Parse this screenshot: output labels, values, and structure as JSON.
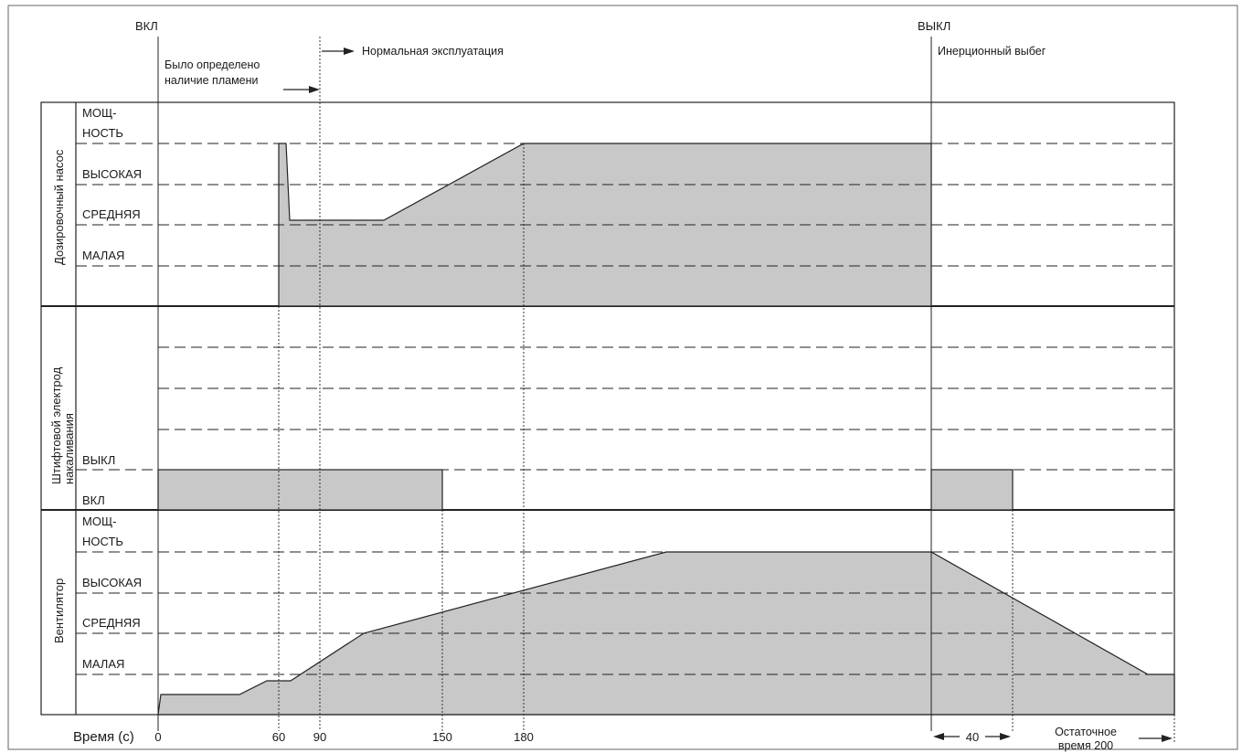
{
  "header": {
    "on_label": "ВКЛ",
    "off_label": "ВЫКЛ",
    "flame_detected_line1": "Было определено",
    "flame_detected_line2": "наличие пламени",
    "normal_operation": "Нормальная эксплуатация",
    "coasting": "Инерционный выбег"
  },
  "panels": {
    "pump": {
      "title": "Дозировочный насос",
      "levels": [
        "МОЩ-",
        "НОСТЬ",
        "ВЫСОКАЯ",
        "СРЕДНЯЯ",
        "МАЛАЯ"
      ]
    },
    "glow": {
      "title_line1": "Штифтовой электрод",
      "title_line2": "накаливания",
      "levels": [
        "ВЫКЛ",
        "ВКЛ"
      ]
    },
    "fan": {
      "title": "Вентилятор",
      "levels": [
        "МОЩ-",
        "НОСТЬ",
        "ВЫСОКАЯ",
        "СРЕДНЯЯ",
        "МАЛАЯ"
      ]
    }
  },
  "axis": {
    "title": "Время (с)",
    "ticks": [
      "0",
      "60",
      "90",
      "150",
      "180"
    ],
    "span_label": "40",
    "residual_line1": "Остаточное",
    "residual_line2": "время 200"
  },
  "chart_data": {
    "type": "area",
    "xlabel": "Время (с)",
    "x_ticks": [
      0,
      60,
      90,
      150,
      180
    ],
    "series": [
      {
        "name": "Дозировочный насос",
        "levels": [
          "МАЛАЯ",
          "СРЕДНЯЯ",
          "ВЫСОКАЯ",
          "МОЩНОСТЬ"
        ],
        "note": "Start at about 60 s, peak at full power, settle at medium, ramp to full power by 180 s, stop at ВЫКЛ."
      },
      {
        "name": "Штифтовой электрод накаливания",
        "states": [
          "ВКЛ",
          "ВЫКЛ"
        ],
        "on_intervals": [
          [
            "0",
            "150"
          ],
          [
            "ВЫКЛ",
            "ВЫКЛ + 40"
          ]
        ]
      },
      {
        "name": "Вентилятор",
        "levels": [
          "МАЛАЯ",
          "СРЕДНЯЯ",
          "ВЫСОКАЯ",
          "МОЩНОСТЬ"
        ],
        "note": "Starts at low level, rises gradually to full power, then ramps down after ВЫКЛ during the residual time."
      }
    ]
  }
}
